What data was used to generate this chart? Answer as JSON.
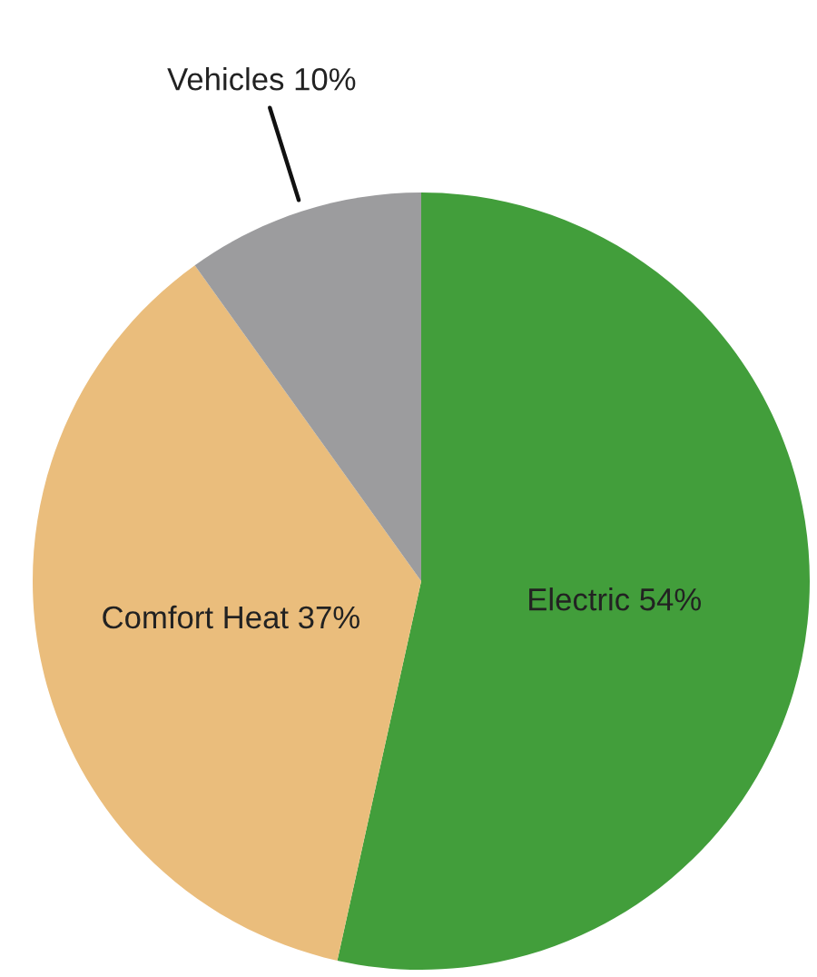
{
  "chart_data": {
    "type": "pie",
    "categories": [
      "Electric",
      "Comfort Heat",
      "Vehicles"
    ],
    "values": [
      54,
      37,
      10
    ],
    "value_labels": [
      "54%",
      "37%",
      "10%"
    ],
    "colors": [
      "#429e3b",
      "#eabd7c",
      "#9c9c9e"
    ]
  }
}
